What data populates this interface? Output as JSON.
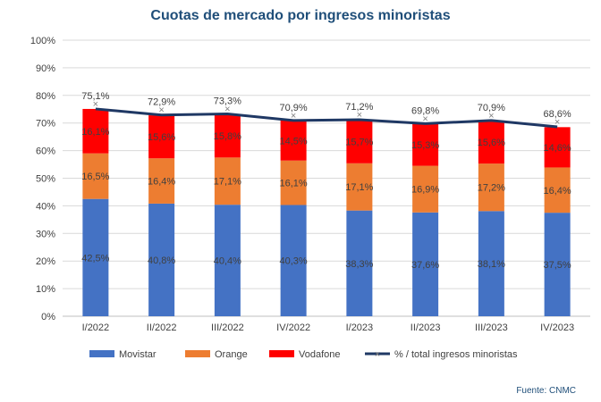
{
  "chart_data": {
    "type": "bar",
    "title": "Cuotas de mercado por ingresos minoristas",
    "categories": [
      "I/2022",
      "II/2022",
      "III/2022",
      "IV/2022",
      "I/2023",
      "II/2023",
      "III/2023",
      "IV/2023"
    ],
    "series": [
      {
        "name": "Movistar",
        "color": "#4472c4",
        "values": [
          42.5,
          40.8,
          40.4,
          40.3,
          38.3,
          37.6,
          38.1,
          37.5
        ],
        "labels": [
          "42,5%",
          "40,8%",
          "40,4%",
          "40,3%",
          "38,3%",
          "37,6%",
          "38,1%",
          "37,5%"
        ]
      },
      {
        "name": "Orange",
        "color": "#ed7d31",
        "values": [
          16.5,
          16.4,
          17.1,
          16.1,
          17.1,
          16.9,
          17.2,
          16.4
        ],
        "labels": [
          "16,5%",
          "16,4%",
          "17,1%",
          "16,1%",
          "17,1%",
          "16,9%",
          "17,2%",
          "16,4%"
        ]
      },
      {
        "name": "Vodafone",
        "color": "#ff0000",
        "values": [
          16.1,
          15.6,
          15.8,
          14.5,
          15.7,
          15.3,
          15.6,
          14.6
        ],
        "labels": [
          "16,1%",
          "15,6%",
          "15,8%",
          "14,5%",
          "15,7%",
          "15,3%",
          "15,6%",
          "14,6%"
        ]
      }
    ],
    "line": {
      "name": "% / total ingresos minoristas",
      "color": "#1f3864",
      "values": [
        75.1,
        72.9,
        73.3,
        70.9,
        71.2,
        69.8,
        70.9,
        68.6
      ],
      "labels": [
        "75,1%",
        "72,9%",
        "73,3%",
        "70,9%",
        "71,2%",
        "69,8%",
        "70,9%",
        "68,6%"
      ]
    },
    "ylim": [
      0,
      100
    ],
    "yticks": [
      "0%",
      "10%",
      "20%",
      "30%",
      "40%",
      "50%",
      "60%",
      "70%",
      "80%",
      "90%",
      "100%"
    ],
    "grid": true,
    "legend": "bottom",
    "stacked": true
  },
  "source": "Fuente: CNMC"
}
